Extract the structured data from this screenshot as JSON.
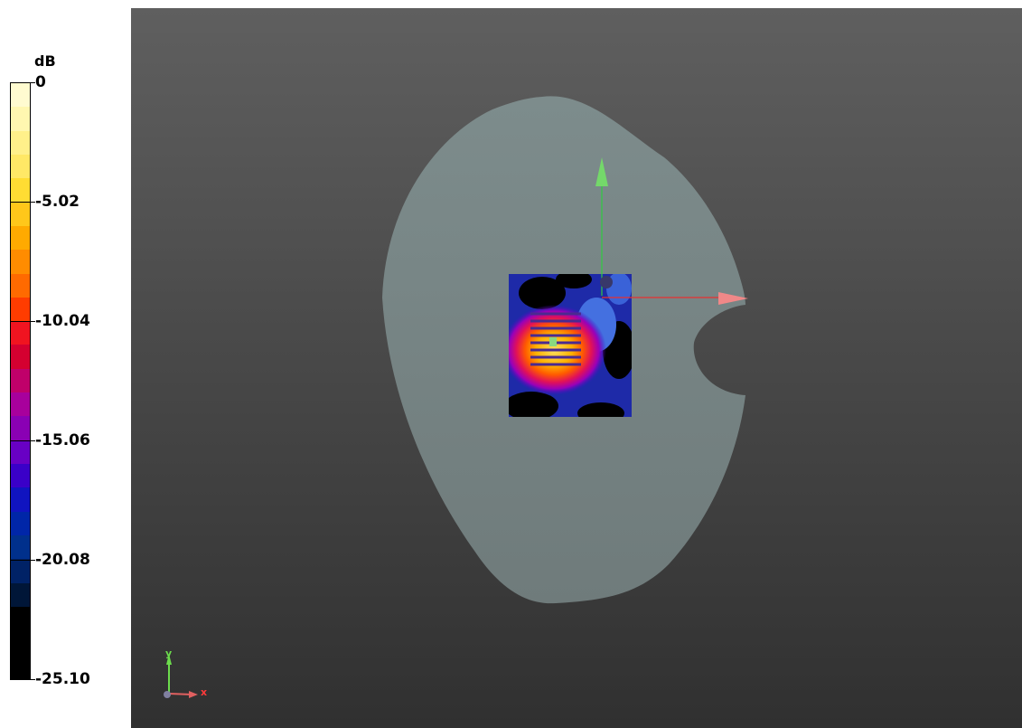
{
  "legend": {
    "unit": "dB",
    "ticks": [
      {
        "label": "0",
        "value": 0
      },
      {
        "label": "-5.02",
        "value": -5.02
      },
      {
        "label": "-10.04",
        "value": -10.04
      },
      {
        "label": "-15.06",
        "value": -15.06
      },
      {
        "label": "-20.08",
        "value": -20.08
      },
      {
        "label": "-25.10",
        "value": -25.1
      }
    ],
    "range": [
      -25.1,
      0
    ],
    "colors": [
      "#fffbd0",
      "#fff7b0",
      "#fff08a",
      "#ffe866",
      "#ffdd33",
      "#ffc71a",
      "#ffaa00",
      "#ff8c00",
      "#ff6a00",
      "#ff3c00",
      "#f01420",
      "#d40030",
      "#c0006a",
      "#a8009c",
      "#8a00b4",
      "#6800c4",
      "#3a00c8",
      "#1014c0",
      "#0026a8",
      "#00308c",
      "#002266",
      "#001638",
      "#000000",
      "#000000",
      "#000000"
    ]
  },
  "viewport": {
    "triad": {
      "y_label": "y",
      "x_label": "x"
    },
    "colors": {
      "phantom": "#7a8888",
      "axis_y": "#2ecc40",
      "axis_x": "#e83030",
      "cone_y": "#78e070",
      "cone_x": "#f08080"
    }
  }
}
